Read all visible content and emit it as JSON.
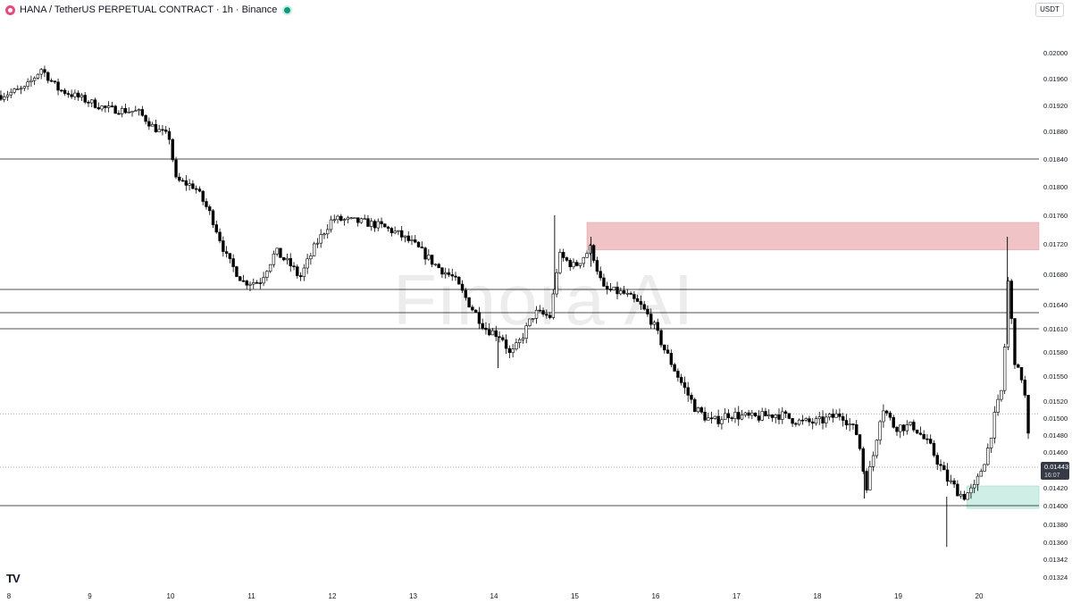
{
  "header": {
    "symbol_title": "HANA / TetherUS PERPETUAL CONTRACT · 1h · Binance"
  },
  "currency_label": "USDT",
  "watermark": "Finora AI",
  "logo_text": "TV",
  "last_price": {
    "price": "0.01443",
    "countdown": "16:07"
  },
  "colors": {
    "up_candle": "#ffffff",
    "down_candle": "#000000",
    "wick": "#000000",
    "resistance_zone": "#f0c4c6",
    "support_zone": "#cfeee6",
    "level_line": "#131722",
    "last_price_bg": "#363a45",
    "live_dot": "#089981"
  },
  "chart_data": {
    "type": "candlestick",
    "x_ticks": [
      "8",
      "9",
      "10",
      "11",
      "12",
      "13",
      "14",
      "15",
      "16",
      "17",
      "18",
      "19",
      "20"
    ],
    "y_ticks": [
      "0.02000",
      "0.01960",
      "0.01920",
      "0.01880",
      "0.01840",
      "0.01800",
      "0.01760",
      "0.01720",
      "0.01680",
      "0.01640",
      "0.01610",
      "0.01580",
      "0.01550",
      "0.01520",
      "0.01500",
      "0.01480",
      "0.01460",
      "0.01443",
      "0.01420",
      "0.01400",
      "0.01380",
      "0.01360",
      "0.01342",
      "0.01324"
    ],
    "horizontal_levels": [
      0.0184,
      0.0166,
      0.0163,
      0.0161,
      0.014
    ],
    "dotted_levels": [
      0.01505,
      0.01443
    ],
    "zones": [
      {
        "kind": "resistance",
        "from_day": 15.15,
        "to_day": 20.8,
        "high": 0.0175,
        "low": 0.01712
      },
      {
        "kind": "support",
        "from_day": 19.85,
        "to_day": 20.8,
        "high": 0.01422,
        "low": 0.01397
      }
    ],
    "ohlc_path": [
      [
        7.9,
        0.01935
      ],
      [
        8.2,
        0.01945
      ],
      [
        8.4,
        0.01975
      ],
      [
        8.6,
        0.01945
      ],
      [
        8.9,
        0.0193
      ],
      [
        9.2,
        0.01915
      ],
      [
        9.6,
        0.0191
      ],
      [
        9.8,
        0.01885
      ],
      [
        10.0,
        0.0187
      ],
      [
        10.05,
        0.0181
      ],
      [
        10.3,
        0.018
      ],
      [
        10.5,
        0.0176
      ],
      [
        10.7,
        0.017
      ],
      [
        10.9,
        0.0167
      ],
      [
        11.1,
        0.0167
      ],
      [
        11.3,
        0.0171
      ],
      [
        11.5,
        0.0169
      ],
      [
        11.6,
        0.01675
      ],
      [
        11.8,
        0.0172
      ],
      [
        12.0,
        0.01755
      ],
      [
        12.4,
        0.0175
      ],
      [
        12.6,
        0.01745
      ],
      [
        12.8,
        0.01735
      ],
      [
        13.0,
        0.0172
      ],
      [
        13.3,
        0.0169
      ],
      [
        13.5,
        0.01675
      ],
      [
        13.7,
        0.0164
      ],
      [
        13.9,
        0.0161
      ],
      [
        14.1,
        0.016
      ],
      [
        14.2,
        0.01575
      ],
      [
        14.3,
        0.0159
      ],
      [
        14.5,
        0.0163
      ],
      [
        14.7,
        0.01625
      ],
      [
        14.8,
        0.01705
      ],
      [
        15.0,
        0.0169
      ],
      [
        15.2,
        0.01715
      ],
      [
        15.35,
        0.0166
      ],
      [
        15.6,
        0.01655
      ],
      [
        15.8,
        0.0164
      ],
      [
        15.95,
        0.0162
      ],
      [
        16.1,
        0.01585
      ],
      [
        16.3,
        0.01545
      ],
      [
        16.5,
        0.0151
      ],
      [
        16.7,
        0.01495
      ],
      [
        16.9,
        0.01505
      ],
      [
        17.2,
        0.015
      ],
      [
        17.5,
        0.01505
      ],
      [
        17.8,
        0.01495
      ],
      [
        18.0,
        0.01495
      ],
      [
        18.3,
        0.01505
      ],
      [
        18.5,
        0.0148
      ],
      [
        18.6,
        0.0142
      ],
      [
        18.7,
        0.0146
      ],
      [
        18.8,
        0.01515
      ],
      [
        18.95,
        0.0149
      ],
      [
        19.2,
        0.0149
      ],
      [
        19.4,
        0.01465
      ],
      [
        19.6,
        0.0143
      ],
      [
        19.8,
        0.0141
      ],
      [
        19.95,
        0.0142
      ],
      [
        20.1,
        0.0146
      ],
      [
        20.2,
        0.01505
      ],
      [
        20.3,
        0.0154
      ],
      [
        20.35,
        0.0168
      ],
      [
        20.45,
        0.0156
      ],
      [
        20.55,
        0.01545
      ],
      [
        20.6,
        0.01485
      ],
      [
        20.65,
        0.01443
      ]
    ],
    "spikes": [
      {
        "day": 14.75,
        "high": 0.0176,
        "low": 0.0166
      },
      {
        "day": 15.2,
        "high": 0.0173,
        "low": 0.0169
      },
      {
        "day": 20.35,
        "high": 0.0173,
        "low": 0.0159
      },
      {
        "day": 19.6,
        "high": 0.0141,
        "low": 0.01355
      },
      {
        "day": 18.58,
        "high": 0.0144,
        "low": 0.01408
      },
      {
        "day": 14.05,
        "high": 0.016,
        "low": 0.0156
      }
    ]
  }
}
